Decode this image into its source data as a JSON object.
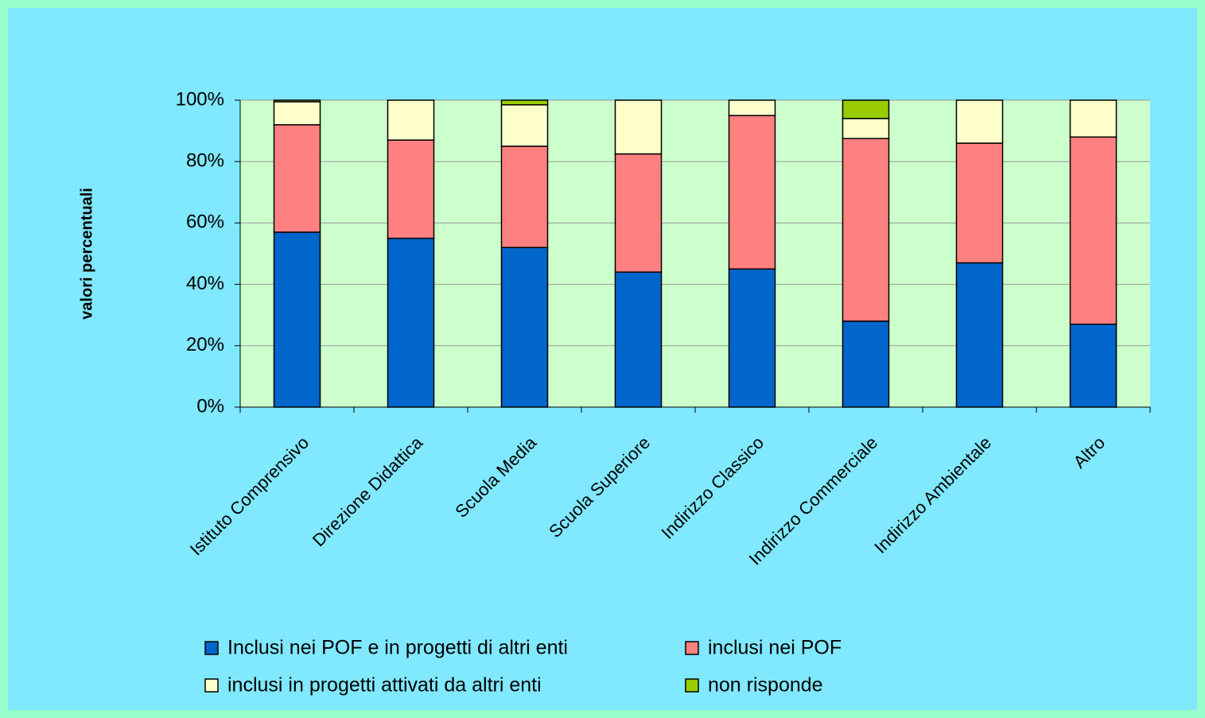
{
  "chart_data": {
    "type": "stacked_bar",
    "y_label": "valori percentuali",
    "categories": [
      "Istituto Comprensivo",
      "Direzione Didattica",
      "Scuola Media",
      "Scuola Superiore",
      "Indirizzo Classico",
      "Indirizzo Commerciale",
      "Indirizzo Ambientale",
      "Altro"
    ],
    "series": [
      {
        "name": "Inclusi nei POF e in progetti di altri enti",
        "color": "#0066cc",
        "values": [
          57,
          55,
          52,
          44,
          45,
          28,
          47,
          27
        ]
      },
      {
        "name": "inclusi nei POF",
        "color": "#ff8080",
        "values": [
          35,
          32,
          33,
          38.5,
          50,
          59.5,
          39,
          61
        ]
      },
      {
        "name": "inclusi in progetti attivati da altri enti",
        "color": "#ffffcc",
        "values": [
          7.5,
          13,
          13.5,
          17.5,
          5,
          6.5,
          14,
          12
        ]
      },
      {
        "name": "non risponde",
        "color": "#99cc00",
        "values": [
          0.5,
          0,
          1.5,
          0,
          0,
          6,
          0,
          0
        ]
      }
    ],
    "ylim": [
      0,
      100
    ],
    "yticks": [
      {
        "value": 0,
        "label": "0%"
      },
      {
        "value": 20,
        "label": "20%"
      },
      {
        "value": 40,
        "label": "40%"
      },
      {
        "value": 60,
        "label": "60%"
      },
      {
        "value": 80,
        "label": "80%"
      },
      {
        "value": 100,
        "label": "100%"
      }
    ],
    "grid": true
  }
}
